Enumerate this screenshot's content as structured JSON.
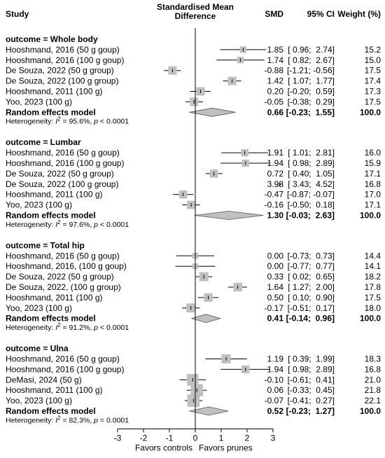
{
  "chart_data": {
    "type": "forest",
    "headers": {
      "study": "Study",
      "effect_line1": "Standardised Mean",
      "effect_line2": "Difference",
      "smd": "SMD",
      "ci": "95% CI",
      "weight": "Weight (%)"
    },
    "xlim": [
      -3,
      3
    ],
    "x_ticks": [
      -3,
      -2,
      -1,
      0,
      1,
      2,
      3
    ],
    "x_tick_labels": [
      "-3",
      "-2",
      "-1",
      "0",
      "1",
      "2",
      "3"
    ],
    "x_label_left": "Favors controls",
    "x_label_right": "Favors prunes",
    "marker_color": "#c0c0c0",
    "diamond_color": "#c0c0c0",
    "groups": [
      {
        "title": "outcome = Whole body",
        "studies": [
          {
            "label": "Hooshmand, 2016 (50 g goup)",
            "smd": 1.85,
            "lo": 0.96,
            "hi": 2.74,
            "smd_text": "1.85",
            "ci_text": "[ 0.96;  2.74]",
            "weight_text": "15.2",
            "weight": 15.2
          },
          {
            "label": "Hooshmand, 2016 (100 g goup)",
            "smd": 1.74,
            "lo": 0.82,
            "hi": 2.67,
            "smd_text": "1.74",
            "ci_text": "[ 0.82;  2.67]",
            "weight_text": "15.0",
            "weight": 15.0
          },
          {
            "label": "De Souza, 2022 (50 g group)",
            "smd": -0.88,
            "lo": -1.21,
            "hi": -0.56,
            "smd_text": "-0.88",
            "ci_text": "[-1.21; -0.56]",
            "weight_text": "17.5",
            "weight": 17.5
          },
          {
            "label": "De Souza, 2022 (100 g group)",
            "smd": 1.42,
            "lo": 1.07,
            "hi": 1.77,
            "smd_text": "1.42",
            "ci_text": "[ 1.07;  1.77]",
            "weight_text": "17.4",
            "weight": 17.4
          },
          {
            "label": "Hooshmand, 2011 (100 g)",
            "smd": 0.2,
            "lo": -0.2,
            "hi": 0.59,
            "smd_text": "0.20",
            "ci_text": "[-0.20;  0.59]",
            "weight_text": "17.3",
            "weight": 17.3
          },
          {
            "label": "Yoo, 2023 (100 g)",
            "smd": -0.05,
            "lo": -0.38,
            "hi": 0.29,
            "smd_text": "-0.05",
            "ci_text": "[-0.38;  0.29]",
            "weight_text": "17.5",
            "weight": 17.5
          }
        ],
        "summary": {
          "label": "Random effects model",
          "smd": 0.66,
          "lo": -0.23,
          "hi": 1.55,
          "smd_text": "0.66",
          "ci_text": "[-0.23;  1.55]",
          "weight_text": "100.0"
        },
        "heterogeneity": {
          "prefix": "Heterogeneity: ",
          "i": "I",
          "sup": "2",
          "stat": " = 95.6%, ",
          "p": "p",
          "p_text": " < 0.0001"
        }
      },
      {
        "title": "outcome = Lumbar",
        "studies": [
          {
            "label": "Hooshmand, 2016 (50 g goup)",
            "smd": 1.91,
            "lo": 1.01,
            "hi": 2.81,
            "smd_text": "1.91",
            "ci_text": "[ 1.01;  2.81]",
            "weight_text": "16.0",
            "weight": 16.0
          },
          {
            "label": "Hooshmand, 2016 (100 g goup)",
            "smd": 1.94,
            "lo": 0.98,
            "hi": 2.89,
            "smd_text": "1.94",
            "ci_text": "[ 0.98;  2.89]",
            "weight_text": "15.9",
            "weight": 15.9
          },
          {
            "label": "De Souza, 2022 (50 g group)",
            "smd": 0.72,
            "lo": 0.4,
            "hi": 1.05,
            "smd_text": "0.72",
            "ci_text": "[ 0.40;  1.05]",
            "weight_text": "17.1",
            "weight": 17.1
          },
          {
            "label": "De Souza, 2022 (100 g group)",
            "smd": 3.98,
            "lo": 3.43,
            "hi": 4.52,
            "smd_text": "3.98",
            "ci_text": "[ 3.43;  4.52]",
            "weight_text": "16.8",
            "weight": 16.8,
            "offscale_marker": ">"
          },
          {
            "label": "Hooshmand, 2011 (100 g)",
            "smd": -0.47,
            "lo": -0.87,
            "hi": -0.07,
            "smd_text": "-0.47",
            "ci_text": "[-0.87; -0.07]",
            "weight_text": "17.0",
            "weight": 17.0
          },
          {
            "label": "Yoo, 2023 (100 g)",
            "smd": -0.16,
            "lo": -0.5,
            "hi": 0.18,
            "smd_text": "-0.16",
            "ci_text": "[-0.50;  0.18]",
            "weight_text": "17.1",
            "weight": 17.1
          }
        ],
        "summary": {
          "label": "Random effects model",
          "smd": 1.3,
          "lo": -0.03,
          "hi": 2.63,
          "smd_text": "1.30",
          "ci_text": "[-0.03;  2.63]",
          "weight_text": "100.0"
        },
        "heterogeneity": {
          "prefix": "Heterogeneity: ",
          "i": "I",
          "sup": "2",
          "stat": " = 97.6%, ",
          "p": "p",
          "p_text": " < 0.0001"
        }
      },
      {
        "title": "outcome = Total hip",
        "studies": [
          {
            "label": "Hooshmand, 2016 (50 g goup)",
            "smd": 0.0,
            "lo": -0.73,
            "hi": 0.73,
            "smd_text": "0.00",
            "ci_text": "[-0.73;  0.73]",
            "weight_text": "14.4",
            "weight": 14.4
          },
          {
            "label": "Hooshmand, 2016, (100 g goup)",
            "smd": 0.0,
            "lo": -0.77,
            "hi": 0.77,
            "smd_text": "0.00",
            "ci_text": "[-0.77;  0.77]",
            "weight_text": "14.1",
            "weight": 14.1
          },
          {
            "label": "De Souza, 2022 (50 g group)",
            "smd": 0.33,
            "lo": 0.02,
            "hi": 0.65,
            "smd_text": "0.33",
            "ci_text": "[ 0.02;  0.65]",
            "weight_text": "18.2",
            "weight": 18.2
          },
          {
            "label": "De Souza, 2022, (100 g group)",
            "smd": 1.64,
            "lo": 1.27,
            "hi": 2.0,
            "smd_text": "1.64",
            "ci_text": "[ 1.27;  2.00]",
            "weight_text": "17.8",
            "weight": 17.8
          },
          {
            "label": "Hooshmand, 2011 (100 g)",
            "smd": 0.5,
            "lo": 0.1,
            "hi": 0.9,
            "smd_text": "0.50",
            "ci_text": "[ 0.10;  0.90]",
            "weight_text": "17.5",
            "weight": 17.5
          },
          {
            "label": "Yoo, 2023 (100 g)",
            "smd": -0.17,
            "lo": -0.51,
            "hi": 0.17,
            "smd_text": "-0.17",
            "ci_text": "[-0.51;  0.17]",
            "weight_text": "18.0",
            "weight": 18.0
          }
        ],
        "summary": {
          "label": "Random effects model",
          "smd": 0.41,
          "lo": -0.14,
          "hi": 0.96,
          "smd_text": "0.41",
          "ci_text": "[-0.14;  0.96]",
          "weight_text": "100.0"
        },
        "heterogeneity": {
          "prefix": "Heterogeneity: ",
          "i": "I",
          "sup": "2",
          "stat": " = 91.2%, ",
          "p": "p",
          "p_text": " < 0.0001"
        }
      },
      {
        "title": "outcome = Ulna",
        "studies": [
          {
            "label": "Hooshmand, 2016 (50 g goup)",
            "smd": 1.19,
            "lo": 0.39,
            "hi": 1.99,
            "smd_text": "1.19",
            "ci_text": "[ 0.39;  1.99]",
            "weight_text": "18.3",
            "weight": 18.3
          },
          {
            "label": "Hooshmand, 2016 (100 g goup)",
            "smd": 1.94,
            "lo": 0.98,
            "hi": 2.89,
            "smd_text": "1.94",
            "ci_text": "[ 0.98;  2.89]",
            "weight_text": "16.8",
            "weight": 16.8
          },
          {
            "label": "DeMasi, 2024 (50 g)",
            "smd": -0.1,
            "lo": -0.61,
            "hi": 0.41,
            "smd_text": "-0.10",
            "ci_text": "[-0.61;  0.41]",
            "weight_text": "21.0",
            "weight": 21.0
          },
          {
            "label": "Hooshmand, 2011 (100 g)",
            "smd": 0.06,
            "lo": -0.33,
            "hi": 0.45,
            "smd_text": "0.06",
            "ci_text": "[-0.33;  0.45]",
            "weight_text": "21.8",
            "weight": 21.8
          },
          {
            "label": "Yoo, 2023 (100 g)",
            "smd": -0.07,
            "lo": -0.41,
            "hi": 0.27,
            "smd_text": "-0.07",
            "ci_text": "[-0.41;  0.27]",
            "weight_text": "22.1",
            "weight": 22.1
          }
        ],
        "summary": {
          "label": "Random effects model",
          "smd": 0.52,
          "lo": -0.23,
          "hi": 1.27,
          "smd_text": "0.52",
          "ci_text": "[-0.23;  1.27]",
          "weight_text": "100.0"
        },
        "heterogeneity": {
          "prefix": "Heterogeneity: ",
          "i": "I",
          "sup": "2",
          "stat": " = 82.3%, ",
          "p": "p",
          "p_text": " = 0.0001"
        }
      }
    ]
  }
}
